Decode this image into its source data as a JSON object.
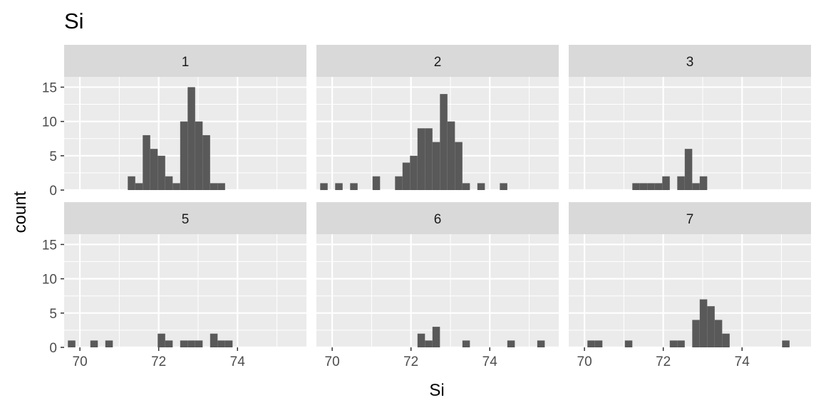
{
  "chart_data": {
    "type": "bar",
    "title": "Si",
    "xlabel": "Si",
    "ylabel": "count",
    "xlim": [
      69.6,
      75.75
    ],
    "ylim": [
      0,
      16.5
    ],
    "xticks": [
      70,
      72,
      74
    ],
    "xtick_labels": [
      "70",
      "72",
      "74"
    ],
    "yticks": [
      0,
      5,
      10,
      15
    ],
    "ytick_labels": [
      "0",
      "5",
      "10",
      "15"
    ],
    "bin_width": 0.19,
    "grid": true,
    "background": "#EBEBEB",
    "strip_color": "#D9D9D9",
    "bar_color": "#595959",
    "facets": [
      {
        "label": "1",
        "bin_centers": [
          71.31,
          71.5,
          71.69,
          71.88,
          72.07,
          72.26,
          72.45,
          72.64,
          72.83,
          73.02,
          73.21,
          73.4,
          73.59
        ],
        "counts": [
          2,
          1,
          8,
          6,
          5,
          2,
          1,
          10,
          15,
          10,
          8,
          1,
          1
        ]
      },
      {
        "label": "2",
        "bin_centers": [
          69.79,
          70.17,
          70.55,
          71.12,
          71.69,
          71.88,
          72.07,
          72.26,
          72.45,
          72.64,
          72.83,
          73.02,
          73.21,
          73.4,
          73.78,
          74.35
        ],
        "counts": [
          1,
          1,
          1,
          2,
          2,
          4,
          5,
          9,
          9,
          7,
          14,
          10,
          7,
          1,
          1,
          1
        ]
      },
      {
        "label": "3",
        "bin_centers": [
          71.31,
          71.5,
          71.69,
          71.88,
          72.07,
          72.45,
          72.64,
          72.83,
          73.02
        ],
        "counts": [
          1,
          1,
          1,
          1,
          2,
          2,
          6,
          1,
          2
        ]
      },
      {
        "label": "5",
        "bin_centers": [
          69.79,
          70.36,
          70.74,
          72.07,
          72.26,
          72.64,
          72.83,
          73.02,
          73.4,
          73.59,
          73.78
        ],
        "counts": [
          1,
          1,
          1,
          2,
          1,
          1,
          1,
          1,
          2,
          1,
          1
        ]
      },
      {
        "label": "6",
        "bin_centers": [
          72.26,
          72.45,
          72.64,
          73.4,
          74.54,
          75.3
        ],
        "counts": [
          2,
          1,
          3,
          1,
          1,
          1
        ]
      },
      {
        "label": "7",
        "bin_centers": [
          70.17,
          70.36,
          71.12,
          72.26,
          72.45,
          72.83,
          73.02,
          73.21,
          73.4,
          73.59,
          75.11
        ],
        "counts": [
          1,
          1,
          1,
          1,
          1,
          4,
          7,
          6,
          4,
          2,
          1
        ]
      }
    ]
  }
}
